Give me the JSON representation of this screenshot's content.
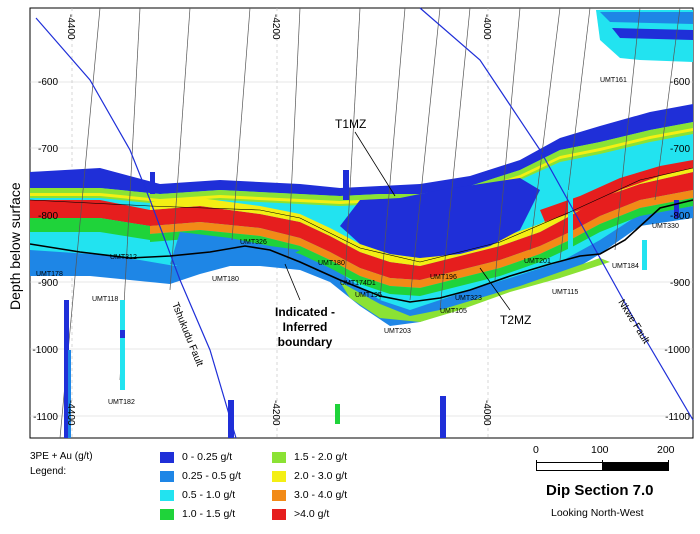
{
  "section": {
    "y_axis_title": "Depth below surface",
    "depth_ticks": [
      "-600",
      "-700",
      "-800",
      "-900",
      "-1000",
      "-1100"
    ],
    "right_depth_ticks": [
      "-600",
      "-700",
      "-800",
      "-900",
      "-1000",
      "-1100"
    ],
    "top_easting_ticks": [
      "-4400",
      "-4200",
      "-4000"
    ],
    "bottom_easting_ticks": [
      "-4400",
      "-4200",
      "-4000"
    ],
    "zone_labels": {
      "upper": "T1MZ",
      "lower": "T2MZ"
    },
    "boundary_label_line1": "Indicated -",
    "boundary_label_line2": "Inferred",
    "boundary_label_line3": "boundary",
    "faults": {
      "left": "Tshukudu Fault",
      "right": "Nkwe Fault"
    },
    "drillholes": [
      "UMT161",
      "UMT330",
      "UMT184",
      "UMT201",
      "UMT196",
      "UMT323",
      "UMT115",
      "UMT105",
      "UMT203",
      "UMT195",
      "UMT174D1",
      "UMT180",
      "UMT326",
      "UMT180",
      "UMT312",
      "UMT178",
      "UMT118",
      "UMT182"
    ]
  },
  "legend": {
    "heading": "3PE + Au (g/t)",
    "sub_heading": "Legend:",
    "items": [
      {
        "label": "0 - 0.25 g/t",
        "color": "#1f2fd8"
      },
      {
        "label": "0.25 - 0.5 g/t",
        "color": "#1e86e6"
      },
      {
        "label": "0.5 - 1.0 g/t",
        "color": "#22e3f0"
      },
      {
        "label": "1.0 - 1.5 g/t",
        "color": "#1fd33a"
      },
      {
        "label": "1.5 - 2.0 g/t",
        "color": "#8be234"
      },
      {
        "label": "2.0 - 3.0 g/t",
        "color": "#f4ef14"
      },
      {
        "label": "3.0 - 4.0 g/t",
        "color": "#f28a17"
      },
      {
        "label": ">4.0 g/t",
        "color": "#e61e1e"
      }
    ]
  },
  "scale": {
    "labels": [
      "0",
      "100",
      "200"
    ]
  },
  "title_block": {
    "title": "Dip Section 7.0",
    "subtitle": "Looking North-West"
  }
}
